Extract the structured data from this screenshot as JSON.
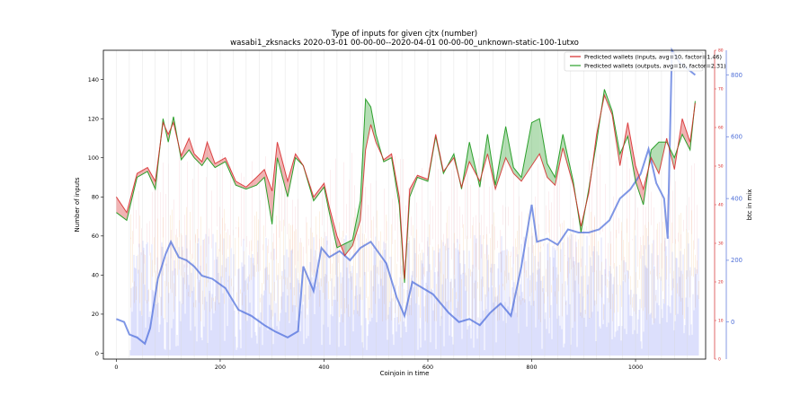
{
  "chart_data": {
    "type": "line",
    "title": "Type of inputs for given cjtx (number)",
    "subtitle": "wasabi1_zksnacks 2020-03-01 00-00-00--2020-04-01 00-00-00_unknown-static-100-1utxo",
    "xlabel": "Coinjoin in time",
    "ylabel": "Number of inputs",
    "y2label": "",
    "y3label": "btc in mix",
    "xlim": [
      -25,
      1135
    ],
    "ylim": [
      -3,
      155
    ],
    "y2lim": [
      0,
      80
    ],
    "y3lim": [
      -120,
      880
    ],
    "x_ticks": [
      0,
      200,
      400,
      600,
      800,
      1000
    ],
    "y_ticks": [
      0,
      20,
      40,
      60,
      80,
      100,
      120,
      140
    ],
    "y2_ticks": [
      0,
      10,
      20,
      30,
      40,
      50,
      60,
      70,
      80
    ],
    "y3_ticks": [
      0,
      200,
      400,
      600,
      800
    ],
    "legend_position": "upper-right",
    "colors": {
      "inputs": "#d62728",
      "outputs": "#2ca02c",
      "btc": "#3b5fd9"
    },
    "series": [
      {
        "name": "Predicted wallets (inputs, avg=10, factor=1.46)",
        "x": [
          0,
          20,
          40,
          60,
          75,
          90,
          100,
          110,
          125,
          140,
          150,
          165,
          175,
          190,
          210,
          230,
          250,
          270,
          285,
          300,
          310,
          330,
          345,
          360,
          380,
          400,
          410,
          425,
          440,
          455,
          470,
          480,
          490,
          500,
          515,
          530,
          545,
          555,
          565,
          580,
          600,
          615,
          630,
          650,
          665,
          680,
          700,
          715,
          730,
          750,
          765,
          780,
          800,
          815,
          830,
          845,
          860,
          880,
          895,
          910,
          925,
          940,
          955,
          970,
          985,
          1000,
          1015,
          1030,
          1045,
          1060,
          1075,
          1090,
          1105,
          1115
        ],
        "values": [
          80,
          72,
          92,
          95,
          88,
          118,
          112,
          118,
          101,
          110,
          102,
          98,
          108,
          97,
          100,
          88,
          85,
          90,
          94,
          83,
          108,
          88,
          102,
          96,
          80,
          87,
          75,
          60,
          50,
          55,
          68,
          104,
          117,
          108,
          99,
          102,
          80,
          38,
          84,
          91,
          89,
          112,
          93,
          100,
          85,
          98,
          88,
          102,
          84,
          100,
          92,
          88,
          96,
          102,
          90,
          86,
          105,
          86,
          65,
          82,
          112,
          132,
          122,
          96,
          118,
          96,
          84,
          100,
          92,
          110,
          94,
          120,
          108,
          128
        ]
      },
      {
        "name": "Predicted wallets (outputs, avg=10, factor=2.31)",
        "x": [
          0,
          20,
          40,
          60,
          75,
          90,
          100,
          110,
          125,
          140,
          150,
          165,
          175,
          190,
          210,
          230,
          250,
          270,
          285,
          300,
          310,
          330,
          345,
          360,
          380,
          400,
          410,
          425,
          440,
          455,
          470,
          480,
          490,
          500,
          515,
          530,
          545,
          555,
          565,
          580,
          600,
          615,
          630,
          650,
          665,
          680,
          700,
          715,
          730,
          750,
          765,
          780,
          800,
          815,
          830,
          845,
          860,
          880,
          895,
          910,
          925,
          940,
          955,
          970,
          985,
          1000,
          1015,
          1030,
          1045,
          1060,
          1075,
          1090,
          1105,
          1115
        ],
        "values": [
          72,
          68,
          90,
          93,
          84,
          120,
          108,
          121,
          99,
          104,
          100,
          96,
          100,
          95,
          98,
          86,
          84,
          86,
          90,
          66,
          100,
          80,
          100,
          96,
          78,
          85,
          72,
          54,
          56,
          58,
          78,
          130,
          126,
          112,
          98,
          100,
          76,
          36,
          80,
          90,
          88,
          111,
          92,
          102,
          84,
          108,
          85,
          112,
          86,
          116,
          95,
          90,
          118,
          120,
          97,
          90,
          112,
          88,
          62,
          84,
          108,
          135,
          124,
          102,
          111,
          88,
          76,
          104,
          108,
          108,
          100,
          112,
          104,
          129
        ]
      },
      {
        "name": "btc in mix",
        "axis": "y3",
        "x": [
          0,
          15,
          25,
          40,
          55,
          65,
          80,
          95,
          105,
          120,
          135,
          150,
          165,
          185,
          210,
          235,
          260,
          285,
          305,
          330,
          350,
          360,
          380,
          395,
          410,
          430,
          450,
          470,
          490,
          520,
          540,
          555,
          570,
          590,
          610,
          640,
          660,
          680,
          700,
          720,
          740,
          760,
          780,
          800,
          810,
          830,
          850,
          870,
          890,
          910,
          930,
          950,
          970,
          990,
          1010,
          1025,
          1040,
          1055,
          1062,
          1070,
          1085,
          1100,
          1115
        ],
        "values": [
          10,
          0,
          -40,
          -50,
          -70,
          -20,
          140,
          220,
          260,
          210,
          200,
          180,
          150,
          140,
          110,
          40,
          20,
          -10,
          -30,
          -50,
          -30,
          180,
          100,
          240,
          210,
          230,
          200,
          240,
          260,
          190,
          80,
          20,
          130,
          110,
          90,
          30,
          0,
          10,
          -10,
          30,
          60,
          20,
          180,
          380,
          260,
          270,
          250,
          300,
          290,
          290,
          300,
          330,
          400,
          430,
          480,
          560,
          450,
          400,
          270,
          880,
          840,
          820,
          800
        ]
      }
    ]
  }
}
